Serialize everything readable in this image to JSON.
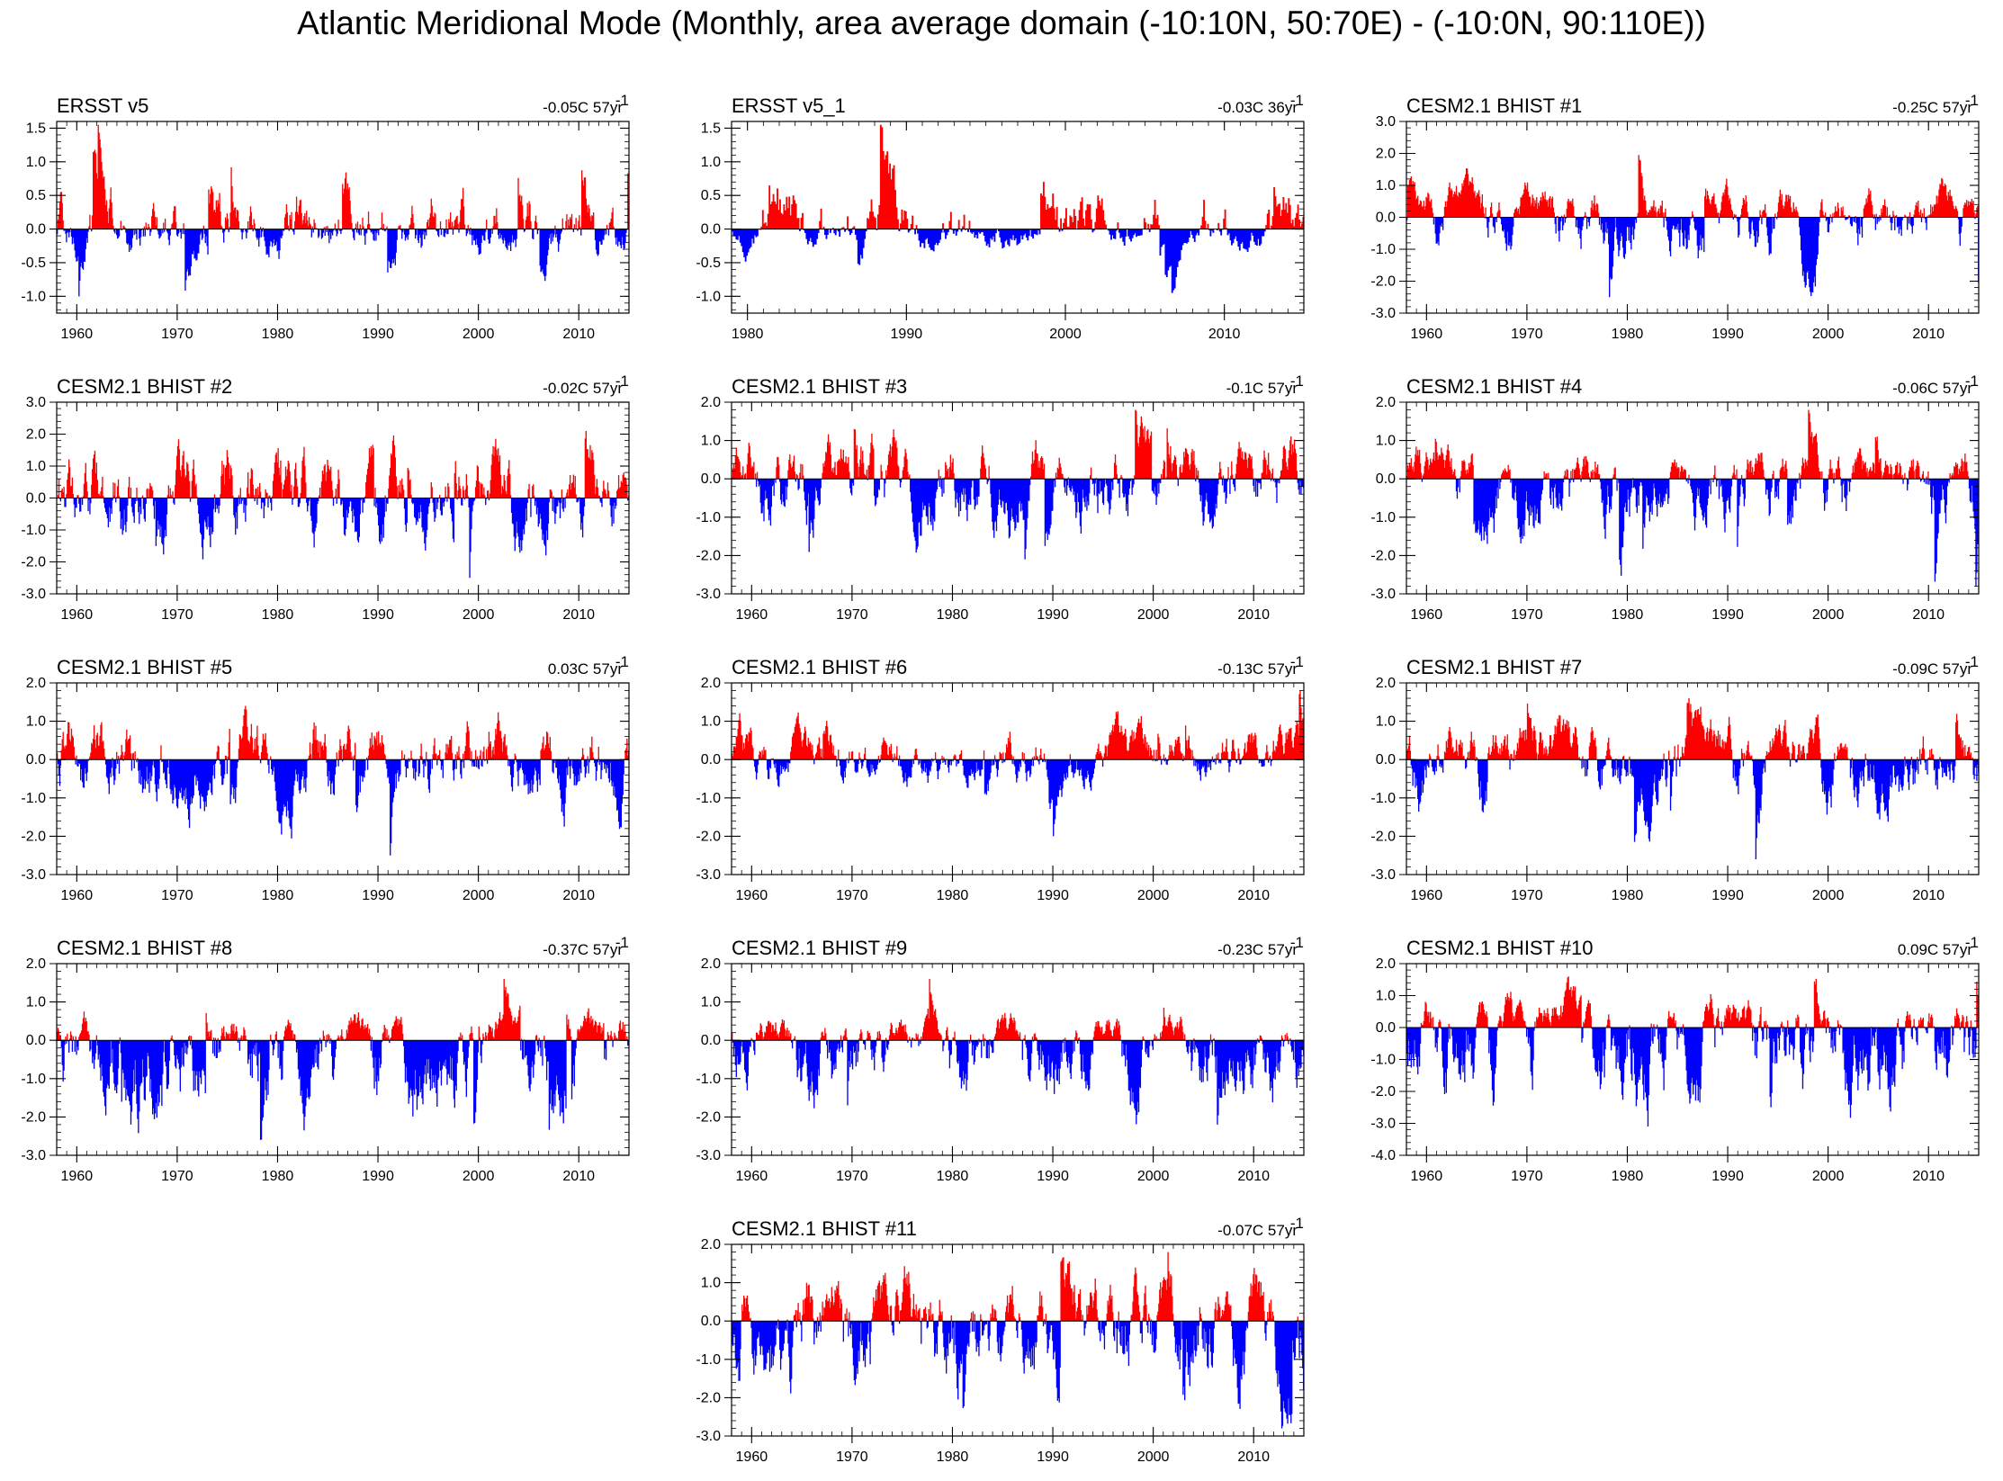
{
  "title": "Atlantic Meridional Mode (Monthly, area average domain (-10:10N, 50:70E) - (-10:0N, 90:110E))",
  "colors": {
    "positive": "#ff0000",
    "negative": "#0000ff",
    "axis": "#000000",
    "background": "#ffffff"
  },
  "chart_data": [
    {
      "type": "bar",
      "title": "ERSST v5",
      "trend": "-0.05C 57yr",
      "trend_sup": "-1",
      "xlim": [
        1958,
        2015
      ],
      "xticks": [
        1960,
        1970,
        1980,
        1990,
        2000,
        2010
      ],
      "ylim": [
        -1.25,
        1.6
      ],
      "yticks": [
        -1.0,
        -0.5,
        0.0,
        0.5,
        1.0,
        1.5
      ],
      "yticklabels": [
        "-1.0",
        "-0.5",
        "0.0",
        "0.5",
        "1.0",
        "1.5"
      ],
      "pos_peak": 1.55,
      "neg_peak": -1.0
    },
    {
      "type": "bar",
      "title": "ERSST v5_1",
      "trend": "-0.03C 36yr",
      "trend_sup": "-1",
      "xlim": [
        1979,
        2015
      ],
      "xticks": [
        1980,
        1990,
        2000,
        2010
      ],
      "ylim": [
        -1.25,
        1.6
      ],
      "yticks": [
        -1.0,
        -0.5,
        0.0,
        0.5,
        1.0,
        1.5
      ],
      "yticklabels": [
        "-1.0",
        "-0.5",
        "0.0",
        "0.5",
        "1.0",
        "1.5"
      ],
      "pos_peak": 1.55,
      "neg_peak": -0.95
    },
    {
      "type": "bar",
      "title": "CESM2.1 BHIST #1",
      "trend": "-0.25C 57yr",
      "trend_sup": "-1",
      "xlim": [
        1958,
        2015
      ],
      "xticks": [
        1960,
        1970,
        1980,
        1990,
        2000,
        2010
      ],
      "ylim": [
        -3.0,
        3.0
      ],
      "yticks": [
        -3,
        -2,
        -1,
        0,
        1,
        2,
        3
      ],
      "yticklabels": [
        "-3.0",
        "-2.0",
        "-1.0",
        "0.0",
        "1.0",
        "2.0",
        "3.0"
      ],
      "pos_peak": 1.95,
      "neg_peak": -2.5
    },
    {
      "type": "bar",
      "title": "CESM2.1 BHIST #2",
      "trend": "-0.02C 57yr",
      "trend_sup": "-1",
      "xlim": [
        1958,
        2015
      ],
      "xticks": [
        1960,
        1970,
        1980,
        1990,
        2000,
        2010
      ],
      "ylim": [
        -3.0,
        3.0
      ],
      "yticks": [
        -3,
        -2,
        -1,
        0,
        1,
        2,
        3
      ],
      "yticklabels": [
        "-3.0",
        "-2.0",
        "-1.0",
        "0.0",
        "1.0",
        "2.0",
        "3.0"
      ],
      "pos_peak": 2.1,
      "neg_peak": -2.5
    },
    {
      "type": "bar",
      "title": "CESM2.1 BHIST #3",
      "trend": "-0.1C 57yr",
      "trend_sup": "-1",
      "xlim": [
        1958,
        2015
      ],
      "xticks": [
        1960,
        1970,
        1980,
        1990,
        2000,
        2010
      ],
      "ylim": [
        -3.0,
        2.0
      ],
      "yticks": [
        -3,
        -2,
        -1,
        0,
        1,
        2
      ],
      "yticklabels": [
        "-3.0",
        "-2.0",
        "-1.0",
        "0.0",
        "1.0",
        "2.0"
      ],
      "pos_peak": 1.8,
      "neg_peak": -2.1
    },
    {
      "type": "bar",
      "title": "CESM2.1 BHIST #4",
      "trend": "-0.06C 57yr",
      "trend_sup": "-1",
      "xlim": [
        1958,
        2015
      ],
      "xticks": [
        1960,
        1970,
        1980,
        1990,
        2000,
        2010
      ],
      "ylim": [
        -3.0,
        2.0
      ],
      "yticks": [
        -3,
        -2,
        -1,
        0,
        1,
        2
      ],
      "yticklabels": [
        "-3.0",
        "-2.0",
        "-1.0",
        "0.0",
        "1.0",
        "2.0"
      ],
      "pos_peak": 1.8,
      "neg_peak": -2.8
    },
    {
      "type": "bar",
      "title": "CESM2.1 BHIST #5",
      "trend": "0.03C 57yr",
      "trend_sup": "-1",
      "xlim": [
        1958,
        2015
      ],
      "xticks": [
        1960,
        1970,
        1980,
        1990,
        2000,
        2010
      ],
      "ylim": [
        -3.0,
        2.0
      ],
      "yticks": [
        -3,
        -2,
        -1,
        0,
        1,
        2
      ],
      "yticklabels": [
        "-3.0",
        "-2.0",
        "-1.0",
        "0.0",
        "1.0",
        "2.0"
      ],
      "pos_peak": 1.4,
      "neg_peak": -2.5
    },
    {
      "type": "bar",
      "title": "CESM2.1 BHIST #6",
      "trend": "-0.13C 57yr",
      "trend_sup": "-1",
      "xlim": [
        1958,
        2015
      ],
      "xticks": [
        1960,
        1970,
        1980,
        1990,
        2000,
        2010
      ],
      "ylim": [
        -3.0,
        2.0
      ],
      "yticks": [
        -3,
        -2,
        -1,
        0,
        1,
        2
      ],
      "yticklabels": [
        "-3.0",
        "-2.0",
        "-1.0",
        "0.0",
        "1.0",
        "2.0"
      ],
      "pos_peak": 1.8,
      "neg_peak": -2.0
    },
    {
      "type": "bar",
      "title": "CESM2.1 BHIST #7",
      "trend": "-0.09C 57yr",
      "trend_sup": "-1",
      "xlim": [
        1958,
        2015
      ],
      "xticks": [
        1960,
        1970,
        1980,
        1990,
        2000,
        2010
      ],
      "ylim": [
        -3.0,
        2.0
      ],
      "yticks": [
        -3,
        -2,
        -1,
        0,
        1,
        2
      ],
      "yticklabels": [
        "-3.0",
        "-2.0",
        "-1.0",
        "0.0",
        "1.0",
        "2.0"
      ],
      "pos_peak": 1.6,
      "neg_peak": -2.6
    },
    {
      "type": "bar",
      "title": "CESM2.1 BHIST #8",
      "trend": "-0.37C 57yr",
      "trend_sup": "-1",
      "xlim": [
        1958,
        2015
      ],
      "xticks": [
        1960,
        1970,
        1980,
        1990,
        2000,
        2010
      ],
      "ylim": [
        -3.0,
        2.0
      ],
      "yticks": [
        -3,
        -2,
        -1,
        0,
        1,
        2
      ],
      "yticklabels": [
        "-3.0",
        "-2.0",
        "-1.0",
        "0.0",
        "1.0",
        "2.0"
      ],
      "pos_peak": 1.6,
      "neg_peak": -2.6
    },
    {
      "type": "bar",
      "title": "CESM2.1 BHIST #9",
      "trend": "-0.23C 57yr",
      "trend_sup": "-1",
      "xlim": [
        1958,
        2015
      ],
      "xticks": [
        1960,
        1970,
        1980,
        1990,
        2000,
        2010
      ],
      "ylim": [
        -3.0,
        2.0
      ],
      "yticks": [
        -3,
        -2,
        -1,
        0,
        1,
        2
      ],
      "yticklabels": [
        "-3.0",
        "-2.0",
        "-1.0",
        "0.0",
        "1.0",
        "2.0"
      ],
      "pos_peak": 1.6,
      "neg_peak": -2.2
    },
    {
      "type": "bar",
      "title": "CESM2.1 BHIST #10",
      "trend": "0.09C 57yr",
      "trend_sup": "-1",
      "xlim": [
        1958,
        2015
      ],
      "xticks": [
        1960,
        1970,
        1980,
        1990,
        2000,
        2010
      ],
      "ylim": [
        -4.0,
        2.0
      ],
      "yticks": [
        -4,
        -3,
        -2,
        -1,
        0,
        1,
        2
      ],
      "yticklabels": [
        "-4.0",
        "-3.0",
        "-2.0",
        "-1.0",
        "0.0",
        "1.0",
        "2.0"
      ],
      "pos_peak": 1.6,
      "neg_peak": -3.1
    },
    {
      "type": "bar",
      "title": "CESM2.1 BHIST #11",
      "trend": "-0.07C 57yr",
      "trend_sup": "-1",
      "xlim": [
        1958,
        2015
      ],
      "xticks": [
        1960,
        1970,
        1980,
        1990,
        2000,
        2010
      ],
      "ylim": [
        -3.0,
        2.0
      ],
      "yticks": [
        -3,
        -2,
        -1,
        0,
        1,
        2
      ],
      "yticklabels": [
        "-3.0",
        "-2.0",
        "-1.0",
        "0.0",
        "1.0",
        "2.0"
      ],
      "pos_peak": 1.8,
      "neg_peak": -2.8
    }
  ]
}
